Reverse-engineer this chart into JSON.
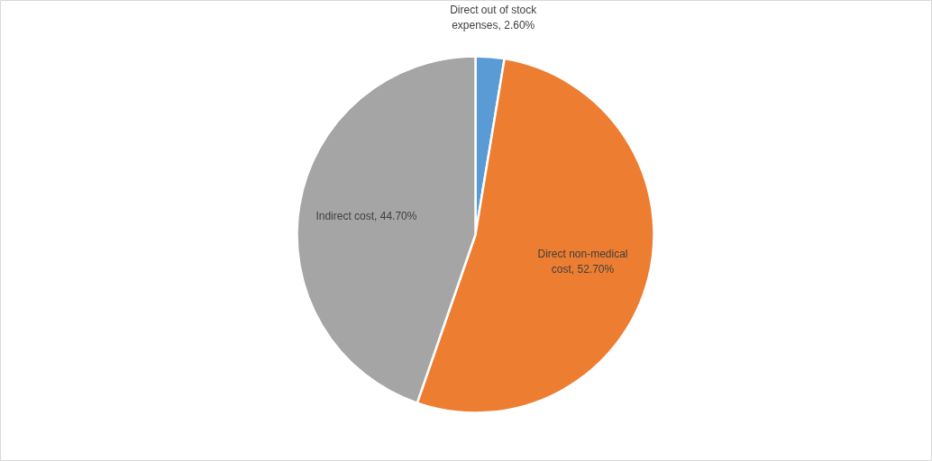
{
  "chart_data": {
    "type": "pie",
    "categories": [
      "Direct out of stock expenses",
      "Direct non-medical cost",
      "Indirect cost"
    ],
    "values": [
      2.6,
      52.7,
      44.7
    ],
    "colors": [
      "#5b9bd5",
      "#ed7d31",
      "#a5a5a5"
    ],
    "value_labels": [
      "2.60%",
      "52.70%",
      "44.70%"
    ],
    "data_labels": true
  }
}
